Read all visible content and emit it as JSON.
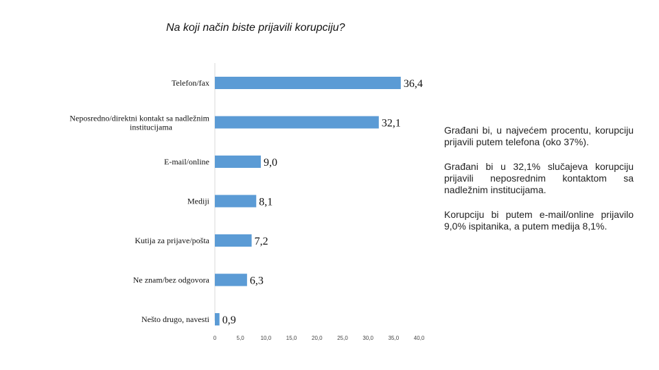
{
  "chart_data": {
    "type": "bar",
    "orientation": "horizontal",
    "title": "Na koji način biste prijavili korupciju?",
    "categories": [
      "Telefon/fax",
      "Neposredno/direktni kontakt sa nadležnim institucijama",
      "E-mail/online",
      "Mediji",
      "Kutija za prijave/pošta",
      "Ne znam/bez odgovora",
      "Nešto drugo, navesti"
    ],
    "values": [
      36.4,
      32.1,
      9.0,
      8.1,
      7.2,
      6.3,
      0.9
    ],
    "value_labels": [
      "36,4",
      "32,1",
      "9,0",
      "8,1",
      "7,2",
      "6,3",
      "0,9"
    ],
    "xlim": [
      0,
      40
    ],
    "xticks": [
      "0",
      "5,0",
      "10,0",
      "15,0",
      "20,0",
      "25,0",
      "30,0",
      "35,0",
      "40,0"
    ],
    "xtick_values": [
      0,
      5,
      10,
      15,
      20,
      25,
      30,
      35,
      40
    ],
    "bar_color": "#5B9BD5",
    "grid": false,
    "legend": "none"
  },
  "notes": [
    "Građani  bi, u najvećem procentu, korupciju prijavili putem telefona (oko 37%).",
    "Građani bi u 32,1% slučajeva korupciju prijavili neposrednim kontaktom sa nadležnim institucijama.",
    "Korupciju  bi  putem  e-mail/online prijavilo  9,0% ispitanika, a putem medija 8,1%."
  ]
}
